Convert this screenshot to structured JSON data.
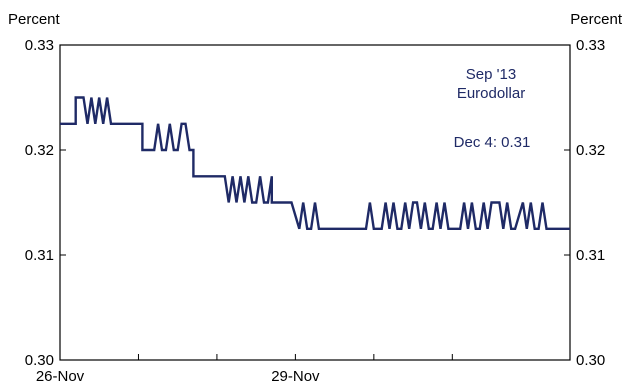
{
  "chart_data": {
    "type": "line",
    "title": "",
    "xlabel": "",
    "ylabel_left": "Percent",
    "ylabel_right": "Percent",
    "ylim": [
      0.3,
      0.33
    ],
    "y_ticks": [
      0.3,
      0.31,
      0.32,
      0.33
    ],
    "y_tick_labels": [
      "0.30",
      "0.31",
      "0.32",
      "0.33"
    ],
    "x_ticks": [
      {
        "x": 0,
        "label": "26-Nov"
      },
      {
        "x": 1,
        "label": ""
      },
      {
        "x": 2,
        "label": ""
      },
      {
        "x": 3,
        "label": "29-Nov"
      },
      {
        "x": 4,
        "label": ""
      },
      {
        "x": 5,
        "label": ""
      }
    ],
    "xlim": [
      0,
      6.5
    ],
    "grid": false,
    "annotations": {
      "series_name_line1": "Sep '13",
      "series_name_line2": "Eurodollar",
      "latest_value": "Dec 4: 0.31"
    },
    "series": [
      {
        "name": "Sep '13 Eurodollar",
        "x": [
          0,
          0.2,
          0.2,
          0.3,
          0.35,
          0.4,
          0.45,
          0.5,
          0.55,
          0.6,
          0.65,
          0.7,
          0.8,
          0.8,
          1.05,
          1.05,
          1.2,
          1.25,
          1.3,
          1.35,
          1.4,
          1.45,
          1.5,
          1.55,
          1.6,
          1.65,
          1.7,
          1.7,
          2.1,
          2.1,
          2.15,
          2.2,
          2.25,
          2.3,
          2.35,
          2.4,
          2.45,
          2.5,
          2.55,
          2.6,
          2.65,
          2.7,
          2.7,
          2.95,
          2.95,
          3.05,
          3.1,
          3.15,
          3.2,
          3.25,
          3.3,
          3.35,
          3.4,
          3.45,
          3.5,
          3.5,
          3.9,
          3.95,
          4.0,
          4.1,
          4.15,
          4.2,
          4.25,
          4.3,
          4.35,
          4.4,
          4.45,
          4.5,
          4.55,
          4.6,
          4.65,
          4.7,
          4.75,
          4.8,
          4.85,
          4.9,
          4.95,
          5.0,
          5.1,
          5.15,
          5.2,
          5.25,
          5.3,
          5.35,
          5.4,
          5.45,
          5.5,
          5.55,
          5.6,
          5.65,
          5.7,
          5.75,
          5.8,
          5.9,
          5.95,
          6.0,
          6.05,
          6.1,
          6.15,
          6.2,
          6.25,
          6.3,
          6.35,
          6.4,
          6.45,
          6.5
        ],
        "values": [
          0.3225,
          0.3225,
          0.325,
          0.325,
          0.3225,
          0.325,
          0.3225,
          0.325,
          0.3225,
          0.325,
          0.3225,
          0.3225,
          0.3225,
          0.3225,
          0.3225,
          0.32,
          0.32,
          0.3225,
          0.32,
          0.32,
          0.3225,
          0.32,
          0.32,
          0.3225,
          0.3225,
          0.32,
          0.32,
          0.3175,
          0.3175,
          0.3175,
          0.315,
          0.3175,
          0.315,
          0.3175,
          0.315,
          0.3175,
          0.315,
          0.315,
          0.3175,
          0.315,
          0.315,
          0.3175,
          0.315,
          0.315,
          0.315,
          0.3125,
          0.315,
          0.3125,
          0.3125,
          0.315,
          0.3125,
          0.3125,
          0.3125,
          0.3125,
          0.3125,
          0.3125,
          0.3125,
          0.315,
          0.3125,
          0.3125,
          0.315,
          0.3125,
          0.315,
          0.3125,
          0.3125,
          0.315,
          0.3125,
          0.315,
          0.315,
          0.3125,
          0.315,
          0.3125,
          0.3125,
          0.315,
          0.3125,
          0.315,
          0.3125,
          0.3125,
          0.3125,
          0.315,
          0.3125,
          0.315,
          0.3125,
          0.3125,
          0.315,
          0.3125,
          0.315,
          0.315,
          0.315,
          0.3125,
          0.315,
          0.3125,
          0.3125,
          0.315,
          0.3125,
          0.315,
          0.3125,
          0.3125,
          0.315,
          0.3125,
          0.3125,
          0.3125,
          0.3125,
          0.3125,
          0.3125,
          0.3125
        ]
      }
    ],
    "colors": {
      "line": "#1f2a66",
      "annotation": "#1f2a66",
      "axis": "#000000"
    }
  }
}
